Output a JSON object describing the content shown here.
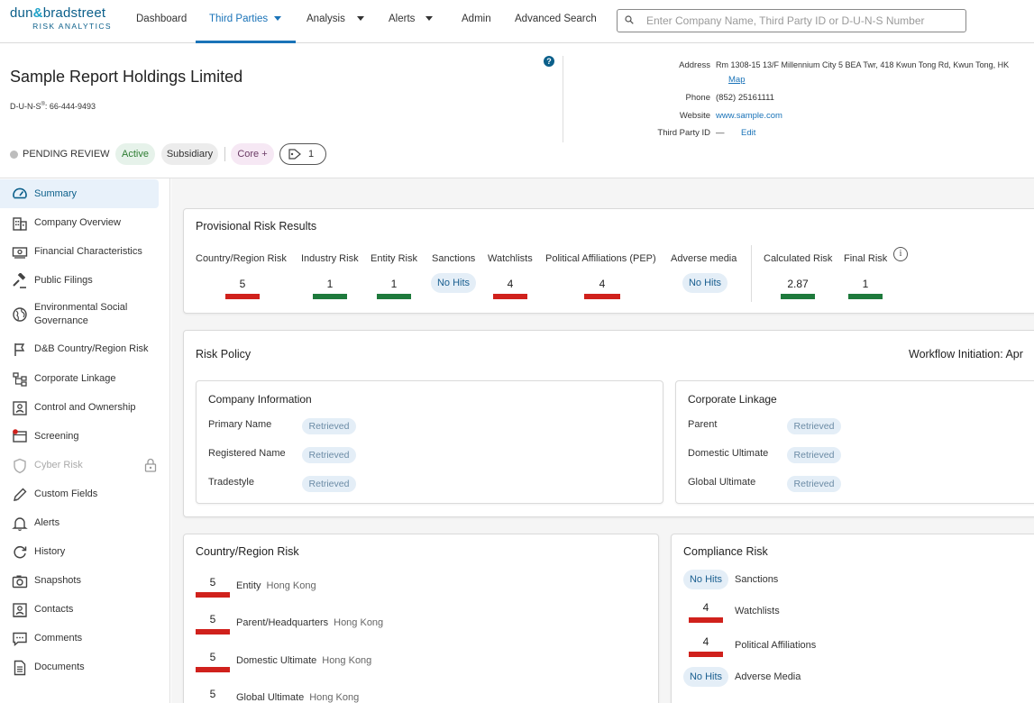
{
  "brand": {
    "line1a": "dun",
    "line1amp": "&",
    "line1b": "bradstreet",
    "line2": "RISK ANALYTICS"
  },
  "nav": {
    "dashboard": "Dashboard",
    "third_parties": "Third Parties",
    "analysis": "Analysis",
    "alerts": "Alerts",
    "admin": "Admin",
    "advanced_search": "Advanced Search",
    "search_placeholder": "Enter Company Name, Third Party ID or D-U-N-S Number"
  },
  "company": {
    "name": "Sample Report Holdings Limited",
    "duns_label": "D-U-N-S",
    "duns_sup": "®",
    "duns_value": ": 66-444-9493",
    "address_label": "Address",
    "address_value": "Rm 1308-15 13/F Millennium City 5 BEA Twr, 418 Kwun Tong Rd, Kwun Tong, HK",
    "map_link": "Map",
    "phone_label": "Phone",
    "phone_value": "(852) 25161111",
    "website_label": "Website",
    "website_value": "www.sample.com",
    "third_party_id_label": "Third Party ID",
    "third_party_id_value": "—",
    "edit_link": "Edit"
  },
  "status": {
    "review": "PENDING REVIEW",
    "active": "Active",
    "subsidiary": "Subsidiary",
    "core": "Core +",
    "tag_count": "1"
  },
  "sidebar": {
    "items": [
      {
        "label": "Summary",
        "icon": "gauge-icon"
      },
      {
        "label": "Company Overview",
        "icon": "building-icon"
      },
      {
        "label": "Financial Characteristics",
        "icon": "money-icon"
      },
      {
        "label": "Public Filings",
        "icon": "gavel-icon"
      },
      {
        "label": "Environmental Social Governance",
        "icon": "globe-icon"
      },
      {
        "label": "D&B Country/Region Risk",
        "icon": "flag-icon"
      },
      {
        "label": "Corporate Linkage",
        "icon": "hierarchy-icon"
      },
      {
        "label": "Control and Ownership",
        "icon": "ownership-icon"
      },
      {
        "label": "Screening",
        "icon": "screening-icon"
      },
      {
        "label": "Cyber Risk",
        "icon": "shield-icon"
      },
      {
        "label": "Custom Fields",
        "icon": "pencil-icon"
      },
      {
        "label": "Alerts",
        "icon": "bell-icon"
      },
      {
        "label": "History",
        "icon": "history-icon"
      },
      {
        "label": "Snapshots",
        "icon": "camera-icon"
      },
      {
        "label": "Contacts",
        "icon": "contacts-icon"
      },
      {
        "label": "Comments",
        "icon": "comment-icon"
      },
      {
        "label": "Documents",
        "icon": "document-icon"
      }
    ]
  },
  "provisional": {
    "title": "Provisional Risk Results",
    "headers": {
      "country": "Country/Region Risk",
      "industry": "Industry Risk",
      "entity": "Entity Risk",
      "sanctions": "Sanctions",
      "watchlists": "Watchlists",
      "pep": "Political Affiliations (PEP)",
      "adverse": "Adverse media",
      "calculated": "Calculated Risk",
      "final": "Final Risk"
    },
    "values": {
      "country": "5",
      "industry": "1",
      "entity": "1",
      "sanctions": "No Hits",
      "watchlists": "4",
      "pep": "4",
      "adverse": "No Hits",
      "calculated": "2.87",
      "final": "1"
    },
    "info_glyph": "i"
  },
  "risk_policy": {
    "title": "Risk Policy",
    "workflow": "Workflow Initiation: Apr",
    "company_info": {
      "title": "Company Information",
      "rows": [
        {
          "label": "Primary Name",
          "status": "Retrieved"
        },
        {
          "label": "Registered Name",
          "status": "Retrieved"
        },
        {
          "label": "Tradestyle",
          "status": "Retrieved"
        }
      ]
    },
    "corporate_linkage": {
      "title": "Corporate Linkage",
      "rows": [
        {
          "label": "Parent",
          "status": "Retrieved"
        },
        {
          "label": "Domestic Ultimate",
          "status": "Retrieved"
        },
        {
          "label": "Global Ultimate",
          "status": "Retrieved"
        }
      ]
    }
  },
  "country_risk": {
    "title": "Country/Region Risk",
    "rows": [
      {
        "score": "5",
        "label": "Entity",
        "location": "Hong Kong"
      },
      {
        "score": "5",
        "label": "Parent/Headquarters",
        "location": "Hong Kong"
      },
      {
        "score": "5",
        "label": "Domestic Ultimate",
        "location": "Hong Kong"
      },
      {
        "score": "5",
        "label": "Global Ultimate",
        "location": "Hong Kong"
      }
    ]
  },
  "compliance": {
    "title": "Compliance Risk",
    "rows": [
      {
        "value": "No Hits",
        "label": "Sanctions"
      },
      {
        "value": "4",
        "label": "Watchlists"
      },
      {
        "value": "4",
        "label": "Political Affiliations"
      },
      {
        "value": "No Hits",
        "label": "Adverse Media"
      }
    ]
  },
  "colors": {
    "high_risk": "#d0211c",
    "low_risk": "#1e7a3c",
    "accent": "#1a73b8"
  }
}
